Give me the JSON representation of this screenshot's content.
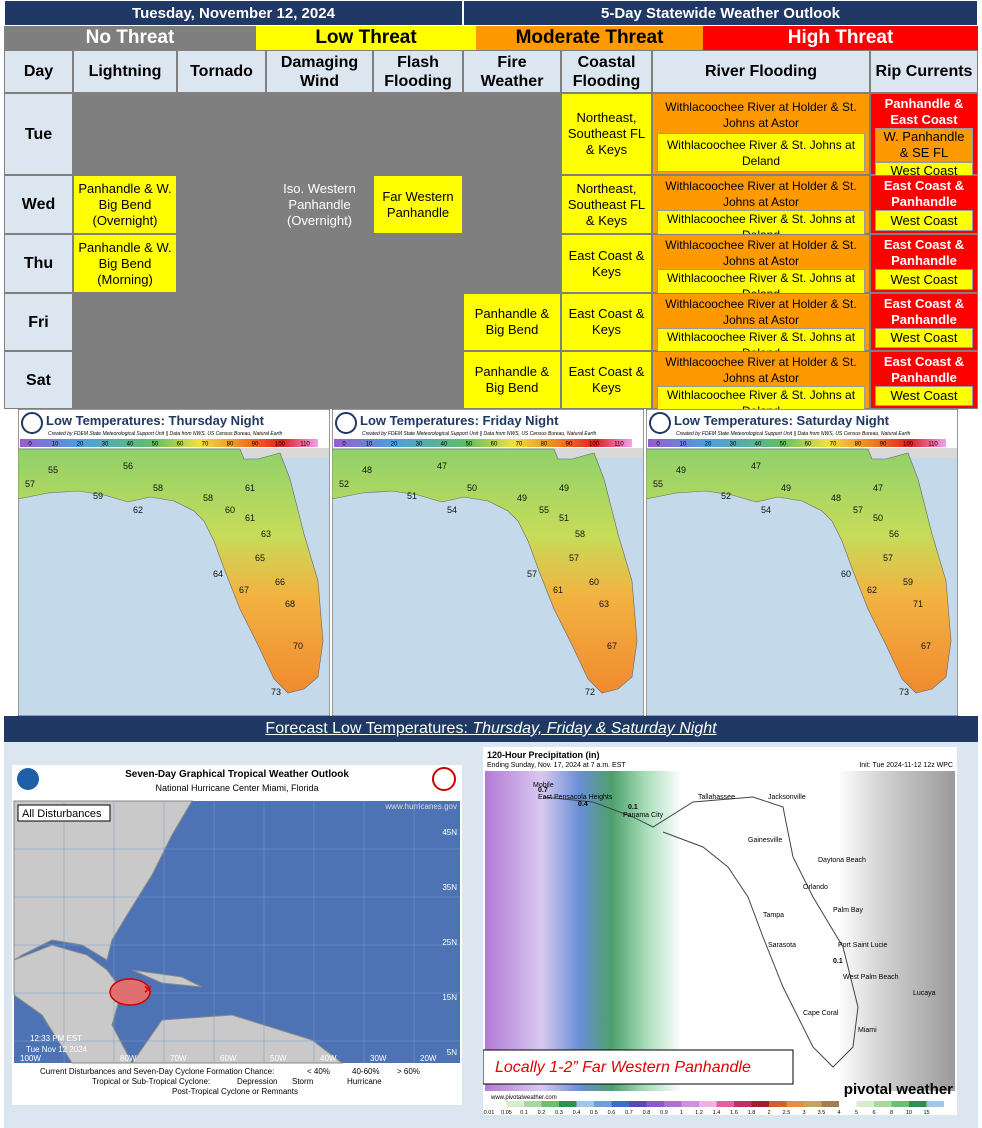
{
  "header": {
    "date": "Tuesday, November 12, 2024",
    "title": "5-Day Statewide Weather Outlook"
  },
  "threat_levels": [
    {
      "key": "none",
      "label": "No Threat",
      "color": "#7f7f7f"
    },
    {
      "key": "low",
      "label": "Low Threat",
      "color": "#ffff00"
    },
    {
      "key": "moderate",
      "label": "Moderate Threat",
      "color": "#ff9900"
    },
    {
      "key": "high",
      "label": "High Threat",
      "color": "#ff0000"
    }
  ],
  "table": {
    "columns": [
      "Day",
      "Lightning",
      "Tornado",
      "Damaging Wind",
      "Flash Flooding",
      "Fire Weather",
      "Coastal Flooding",
      "River Flooding",
      "Rip Currents"
    ],
    "rows": [
      {
        "day": "Tue",
        "cells": [
          [],
          [],
          [],
          [],
          [],
          [
            {
              "level": "low",
              "text": "Northeast, Southeast FL & Keys"
            }
          ],
          [
            {
              "level": "moderate",
              "text": "Withlacoochee River at Holder & St. Johns at Astor"
            },
            {
              "level": "low",
              "text": "Withlacoochee River & St. Johns at Deland"
            }
          ],
          [
            {
              "level": "high",
              "text": "Panhandle & East Coast"
            },
            {
              "level": "moderate",
              "text": "W. Panhandle & SE FL"
            },
            {
              "level": "low",
              "text": "West Coast"
            }
          ]
        ]
      },
      {
        "day": "Wed",
        "cells": [
          [
            {
              "level": "low",
              "text": "Panhandle & W. Big Bend (Overnight)"
            }
          ],
          [],
          [
            {
              "level": "none",
              "text": "Iso. Western Panhandle (Overnight)"
            }
          ],
          [
            {
              "level": "low",
              "text": "Far Western Panhandle"
            }
          ],
          [],
          [
            {
              "level": "low",
              "text": "Northeast, Southeast FL & Keys"
            }
          ],
          [
            {
              "level": "moderate",
              "text": "Withlacoochee River at Holder & St. Johns at Astor"
            },
            {
              "level": "low",
              "text": "Withlacoochee River & St. Johns at Deland"
            }
          ],
          [
            {
              "level": "high",
              "text": "East Coast & Panhandle"
            },
            {
              "level": "low",
              "text": "West Coast"
            }
          ]
        ]
      },
      {
        "day": "Thu",
        "cells": [
          [
            {
              "level": "low",
              "text": "Panhandle & W. Big Bend (Morning)"
            }
          ],
          [],
          [],
          [],
          [],
          [
            {
              "level": "low",
              "text": "East Coast & Keys"
            }
          ],
          [
            {
              "level": "moderate",
              "text": "Withlacoochee River at Holder & St. Johns at Astor"
            },
            {
              "level": "low",
              "text": "Withlacoochee River & St. Johns at Deland"
            }
          ],
          [
            {
              "level": "high",
              "text": "East Coast & Panhandle"
            },
            {
              "level": "low",
              "text": "West Coast"
            }
          ]
        ]
      },
      {
        "day": "Fri",
        "cells": [
          [],
          [],
          [],
          [],
          [
            {
              "level": "low",
              "text": "Panhandle & Big Bend"
            }
          ],
          [
            {
              "level": "low",
              "text": "East Coast & Keys"
            }
          ],
          [
            {
              "level": "moderate",
              "text": "Withlacoochee River at Holder & St. Johns at Astor"
            },
            {
              "level": "low",
              "text": "Withlacoochee River & St. Johns at Deland"
            }
          ],
          [
            {
              "level": "high",
              "text": "East Coast & Panhandle"
            },
            {
              "level": "low",
              "text": "West Coast"
            }
          ]
        ]
      },
      {
        "day": "Sat",
        "cells": [
          [],
          [],
          [],
          [],
          [
            {
              "level": "low",
              "text": "Panhandle & Big Bend"
            }
          ],
          [
            {
              "level": "low",
              "text": "East Coast & Keys"
            }
          ],
          [
            {
              "level": "moderate",
              "text": "Withlacoochee River at Holder & St. Johns at Astor"
            },
            {
              "level": "low",
              "text": "Withlacoochee River & St. Johns at Deland"
            }
          ],
          [
            {
              "level": "high",
              "text": "East Coast & Panhandle"
            },
            {
              "level": "low",
              "text": "West Coast"
            }
          ]
        ]
      }
    ]
  },
  "temperature_maps": {
    "credit": "Created by FDEM State Meteorological Support Unit || Data from NWS, US Census Bureau, Natural Earth",
    "scale_ticks": [
      0,
      10,
      20,
      30,
      40,
      50,
      60,
      70,
      80,
      90,
      100,
      110
    ],
    "maps": [
      {
        "title": "Low Temperatures: Thursday Night",
        "temps": [
          55,
          56,
          57,
          58,
          59,
          58,
          61,
          62,
          60,
          61,
          63,
          65,
          66,
          64,
          67,
          68,
          70,
          73
        ]
      },
      {
        "title": "Low Temperatures: Friday Night",
        "temps": [
          48,
          47,
          52,
          50,
          51,
          49,
          49,
          54,
          55,
          51,
          58,
          57,
          60,
          57,
          61,
          63,
          67,
          72
        ]
      },
      {
        "title": "Low Temperatures: Saturday Night",
        "temps": [
          49,
          47,
          55,
          49,
          52,
          48,
          47,
          54,
          57,
          50,
          56,
          57,
          59,
          60,
          62,
          71,
          67,
          73
        ]
      }
    ]
  },
  "caption": {
    "text": "Forecast Low Temperatures: ",
    "emphasis": "Thursday, Friday & Saturday Night"
  },
  "tropical": {
    "title": "Seven-Day Graphical Tropical Weather Outlook",
    "subtitle": "National Hurricane Center  Miami, Florida",
    "tab": "All Disturbances",
    "url": "www.hurricanes.gov",
    "lat_labels": [
      "45N",
      "35N",
      "25N",
      "15N",
      "5N"
    ],
    "lon_labels": [
      "100W",
      "80W",
      "70W",
      "60W",
      "50W",
      "40W",
      "30W",
      "20W"
    ],
    "time": "12:33 PM EST",
    "date": "Tue Nov 12 2024",
    "legend_title": "Current Disturbances and Seven-Day Cyclone Formation Chance:",
    "chances": [
      "< 40%",
      "40-60%",
      "> 60%"
    ],
    "cyclone_title": "Tropical or Sub-Tropical Cyclone:",
    "cyclone_types": [
      "Depression",
      "Storm",
      "Hurricane"
    ],
    "post": "Post-Tropical Cyclone or Remnants"
  },
  "precip": {
    "title": "120-Hour Precipitation (in)",
    "subtitle": "Ending Sunday, Nov. 17, 2024 at 7 a.m. EST",
    "init": "Init: Tue 2024-11-12 12z WPC",
    "cities": [
      "Mobile",
      "East Pensacola Heights",
      "Panama City",
      "Tallahassee",
      "Jacksonville",
      "Gainesville",
      "Daytona Beach",
      "Orlando",
      "Palm Bay",
      "Tampa",
      "Sarasota",
      "Port Saint Lucie",
      "West Palm Beach",
      "Cape Coral",
      "Miami",
      "Lucaya"
    ],
    "amounts": [
      "0.7",
      "0.4",
      "0.1",
      "0.1"
    ],
    "note": "Locally 1-2” Far Western Panhandle",
    "brand": "pivotal weather",
    "url": "www.pivotalweather.com",
    "scale_ticks": [
      "0.01",
      "0.05",
      "0.1",
      "0.2",
      "0.3",
      "0.4",
      "0.5",
      "0.6",
      "0.7",
      "0.8",
      "0.9",
      "1",
      "1.2",
      "1.4",
      "1.6",
      "1.8",
      "2",
      "2.5",
      "3",
      "3.5",
      "4",
      "5",
      "6",
      "8",
      "10",
      "15"
    ]
  }
}
